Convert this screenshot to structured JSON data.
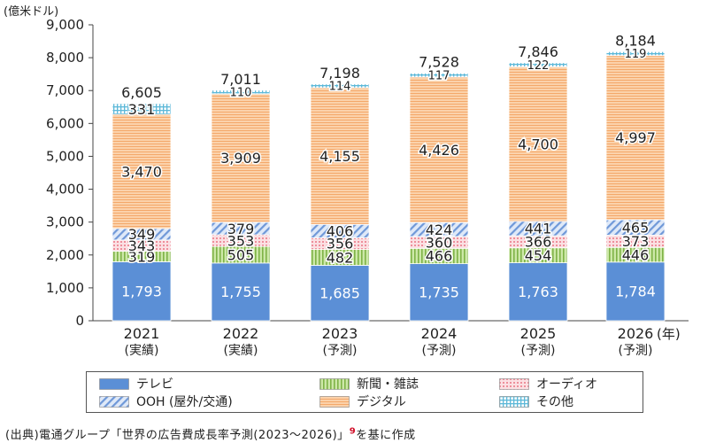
{
  "unit_label": "(億米ドル)",
  "source": {
    "text_before": "(出典)電通グループ「世界の広告費成長率予測(2023〜2026)」",
    "footnote": "9",
    "text_after": "を基に作成"
  },
  "year_suffix": "(年)",
  "colors": {
    "tv": "#5b8fd6",
    "newspaper": "#b7dc8a",
    "audio": "#f6c3c8",
    "ooh": "#b9cff0",
    "digital": "#f9c79a",
    "other": "#a9dcef"
  },
  "chart_data": {
    "type": "bar",
    "stacked": true,
    "categories": [
      "2021",
      "2022",
      "2023",
      "2024",
      "2025",
      "2026"
    ],
    "category_sublabels": [
      "(実績)",
      "(実績)",
      "(予測)",
      "(予測)",
      "(予測)",
      "(予測)"
    ],
    "ylim": [
      0,
      9000
    ],
    "yticks": [
      "0",
      "1,000",
      "2,000",
      "3,000",
      "4,000",
      "5,000",
      "6,000",
      "7,000",
      "8,000",
      "9,000"
    ],
    "totals": [
      "6,605",
      "7,011",
      "7,198",
      "7,528",
      "7,846",
      "8,184"
    ],
    "series": [
      {
        "key": "tv",
        "name": "テレビ",
        "values": [
          1793,
          1755,
          1685,
          1735,
          1763,
          1784
        ],
        "labels": [
          "1,793",
          "1,755",
          "1,685",
          "1,735",
          "1,763",
          "1,784"
        ]
      },
      {
        "key": "newspaper",
        "name": "新聞・雑誌",
        "values": [
          319,
          505,
          482,
          466,
          454,
          446
        ],
        "labels": [
          "319",
          "505",
          "482",
          "466",
          "454",
          "446"
        ]
      },
      {
        "key": "audio",
        "name": "オーディオ",
        "values": [
          343,
          353,
          356,
          360,
          366,
          373
        ],
        "labels": [
          "343",
          "353",
          "356",
          "360",
          "366",
          "373"
        ]
      },
      {
        "key": "ooh",
        "name": "OOH (屋外/交通)",
        "values": [
          349,
          379,
          406,
          424,
          441,
          465
        ],
        "labels": [
          "349",
          "379",
          "406",
          "424",
          "441",
          "465"
        ]
      },
      {
        "key": "digital",
        "name": "デジタル",
        "values": [
          3470,
          3909,
          4155,
          4426,
          4700,
          4997
        ],
        "labels": [
          "3,470",
          "3,909",
          "4,155",
          "4,426",
          "4,700",
          "4,997"
        ]
      },
      {
        "key": "other",
        "name": "その他",
        "values": [
          331,
          110,
          114,
          117,
          122,
          119
        ],
        "labels": [
          "331",
          "110",
          "114",
          "117",
          "122",
          "119"
        ]
      }
    ],
    "legend_order": [
      "tv",
      "newspaper",
      "audio",
      "ooh",
      "digital",
      "other"
    ],
    "grid": false,
    "legend_position": "bottom"
  }
}
